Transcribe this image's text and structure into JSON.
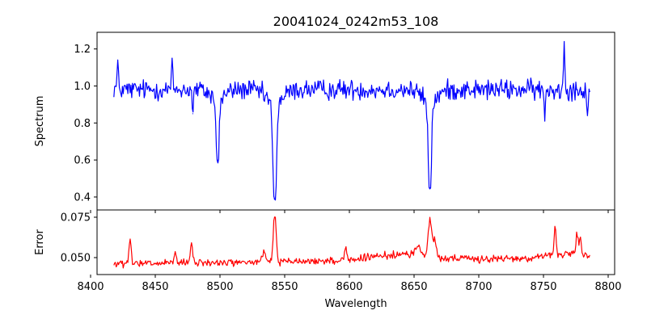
{
  "chart_data": [
    {
      "type": "line",
      "title": "20041024_0242m53_108",
      "xlabel": "",
      "ylabel": "Spectrum",
      "xlim": [
        8405,
        8805
      ],
      "ylim": [
        0.33,
        1.29
      ],
      "x_ticks": [
        8400,
        8450,
        8500,
        8550,
        8600,
        8650,
        8700,
        8750,
        8800
      ],
      "y_ticks": [
        0.4,
        0.6,
        0.8,
        1.0,
        1.2
      ],
      "y_tick_labels": [
        "0.4",
        "0.6",
        "0.8",
        "1.0",
        "1.2"
      ],
      "grid": false,
      "series": [
        {
          "color": "#0000ff",
          "x_start": 8418,
          "x_end": 8786,
          "sample_step": 0.6,
          "continuum": 0.98,
          "noise_amplitude": 0.045,
          "absorption_lines": [
            {
              "center": 8498.2,
              "depth": 0.38,
              "width": 1.1
            },
            {
              "center": 8542.3,
              "depth": 0.58,
              "width": 1.3
            },
            {
              "center": 8662.2,
              "depth": 0.52,
              "width": 1.2
            }
          ],
          "highlight_points": [
            {
              "x": 8419,
              "y": 1.0
            },
            {
              "x": 8421,
              "y": 1.14
            },
            {
              "x": 8463,
              "y": 1.15
            },
            {
              "x": 8479,
              "y": 0.85
            },
            {
              "x": 8498,
              "y": 0.6
            },
            {
              "x": 8542,
              "y": 0.39
            },
            {
              "x": 8662,
              "y": 0.45
            },
            {
              "x": 8751,
              "y": 0.81
            },
            {
              "x": 8766,
              "y": 1.24
            },
            {
              "x": 8784,
              "y": 0.84
            }
          ]
        }
      ]
    },
    {
      "type": "line",
      "title": "",
      "xlabel": "Wavelength",
      "ylabel": "Error",
      "xlim": [
        8405,
        8805
      ],
      "ylim": [
        0.0395,
        0.0795
      ],
      "x_ticks": [
        8400,
        8450,
        8500,
        8550,
        8600,
        8650,
        8700,
        8750,
        8800
      ],
      "x_tick_labels": [
        "8400",
        "8450",
        "8500",
        "8550",
        "8600",
        "8650",
        "8700",
        "8750",
        "8800"
      ],
      "y_ticks": [
        0.05,
        0.075
      ],
      "y_tick_labels": [
        "0.050",
        "0.075"
      ],
      "grid": false,
      "series": [
        {
          "color": "#ff0000",
          "x_start": 8418,
          "x_end": 8786,
          "sample_step": 0.6,
          "baseline_start": 0.046,
          "baseline_end": 0.05,
          "noise_amplitude": 0.0017,
          "peaks": [
            {
              "center": 8430.5,
              "height": 0.015,
              "width": 0.8
            },
            {
              "center": 8465.5,
              "height": 0.007,
              "width": 0.8
            },
            {
              "center": 8478.0,
              "height": 0.013,
              "width": 0.8
            },
            {
              "center": 8542.3,
              "height": 0.03,
              "width": 1.1
            },
            {
              "center": 8534.0,
              "height": 0.006,
              "width": 1.2
            },
            {
              "center": 8597.0,
              "height": 0.009,
              "width": 0.8
            },
            {
              "center": 8653.0,
              "height": 0.006,
              "width": 2.0
            },
            {
              "center": 8662.2,
              "height": 0.023,
              "width": 1.3
            },
            {
              "center": 8666.0,
              "height": 0.011,
              "width": 1.2
            },
            {
              "center": 8759.0,
              "height": 0.017,
              "width": 0.8
            },
            {
              "center": 8776.0,
              "height": 0.014,
              "width": 0.8
            },
            {
              "center": 8778.5,
              "height": 0.012,
              "width": 0.7
            }
          ]
        }
      ]
    }
  ]
}
